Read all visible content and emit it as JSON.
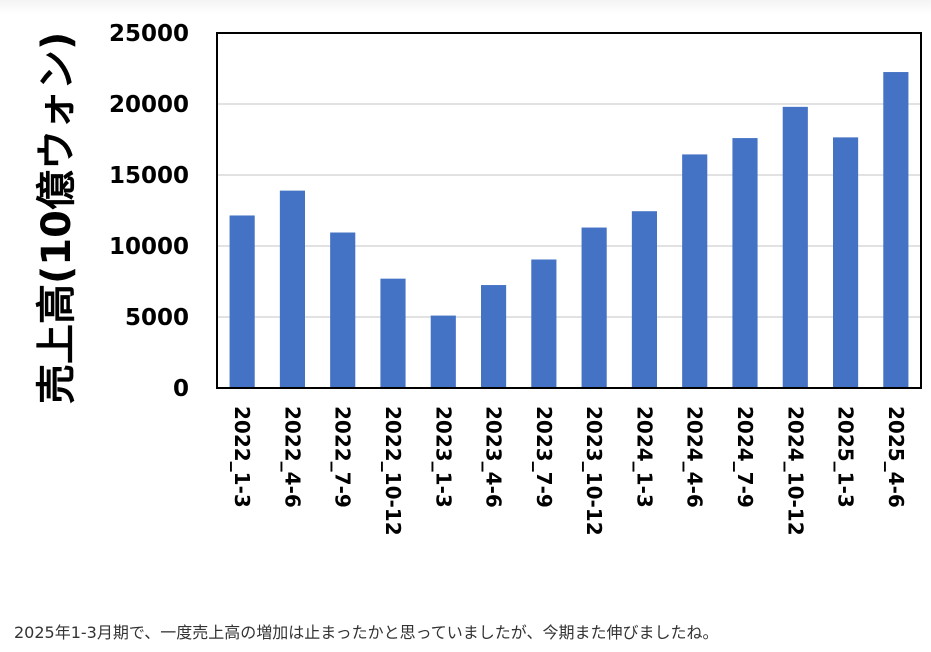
{
  "chart_data": {
    "type": "bar",
    "title": "",
    "xlabel": "",
    "ylabel": "売上高(10億ウォン)",
    "ylim": [
      0,
      25000
    ],
    "yticks": [
      0,
      5000,
      10000,
      15000,
      20000,
      25000
    ],
    "grid": true,
    "legend": "none",
    "bar_color": "#4472C4",
    "categories": [
      "2022_1-3",
      "2022_4-6",
      "2022_7-9",
      "2022_10-12",
      "2023_1-3",
      "2023_4-6",
      "2023_7-9",
      "2023_10-12",
      "2024_1-3",
      "2024_4-6",
      "2024_7-9",
      "2024_10-12",
      "2025_1-3",
      "2025_4-6"
    ],
    "values": [
      12150,
      13900,
      10950,
      7700,
      5100,
      7250,
      9050,
      11300,
      12450,
      16450,
      17600,
      19800,
      17650,
      22250
    ]
  },
  "caption": "2025年1-3月期で、一度売上高の増加は止まったかと思っていましたが、今期また伸びましたね。"
}
